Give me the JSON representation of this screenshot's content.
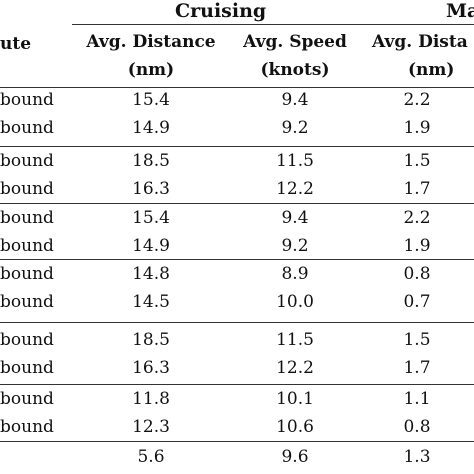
{
  "table": {
    "groups": {
      "cruising": "Cruising",
      "maneuvering_partial": "Ma"
    },
    "headers": {
      "route_partial": "ute",
      "cruising_distance_line1": "Avg. Distance",
      "cruising_distance_line2": "(nm)",
      "cruising_speed_line1": "Avg. Speed",
      "cruising_speed_line2": "(knots)",
      "maneuvering_distance_line1": "Avg. Dista",
      "maneuvering_distance_line2": "(nm)"
    },
    "rows": [
      {
        "route": "bound",
        "cruise_distance": "15.4",
        "cruise_speed": "9.4",
        "man_distance": "2.2"
      },
      {
        "route": "bound",
        "cruise_distance": "14.9",
        "cruise_speed": "9.2",
        "man_distance": "1.9"
      },
      {
        "route": "bound",
        "cruise_distance": "18.5",
        "cruise_speed": "11.5",
        "man_distance": "1.5"
      },
      {
        "route": "bound",
        "cruise_distance": "16.3",
        "cruise_speed": "12.2",
        "man_distance": "1.7"
      },
      {
        "route": "bound",
        "cruise_distance": "15.4",
        "cruise_speed": "9.4",
        "man_distance": "2.2"
      },
      {
        "route": "bound",
        "cruise_distance": "14.9",
        "cruise_speed": "9.2",
        "man_distance": "1.9"
      },
      {
        "route": "bound",
        "cruise_distance": "14.8",
        "cruise_speed": "8.9",
        "man_distance": "0.8"
      },
      {
        "route": "bound",
        "cruise_distance": "14.5",
        "cruise_speed": "10.0",
        "man_distance": "0.7"
      },
      {
        "route": "bound",
        "cruise_distance": "18.5",
        "cruise_speed": "11.5",
        "man_distance": "1.5"
      },
      {
        "route": "bound",
        "cruise_distance": "16.3",
        "cruise_speed": "12.2",
        "man_distance": "1.7"
      },
      {
        "route": "bound",
        "cruise_distance": "11.8",
        "cruise_speed": "10.1",
        "man_distance": "1.1"
      },
      {
        "route": "bound",
        "cruise_distance": "12.3",
        "cruise_speed": "10.6",
        "man_distance": "0.8"
      },
      {
        "route": "",
        "cruise_distance": "5.6",
        "cruise_speed": "9.6",
        "man_distance": "1.3"
      }
    ]
  }
}
